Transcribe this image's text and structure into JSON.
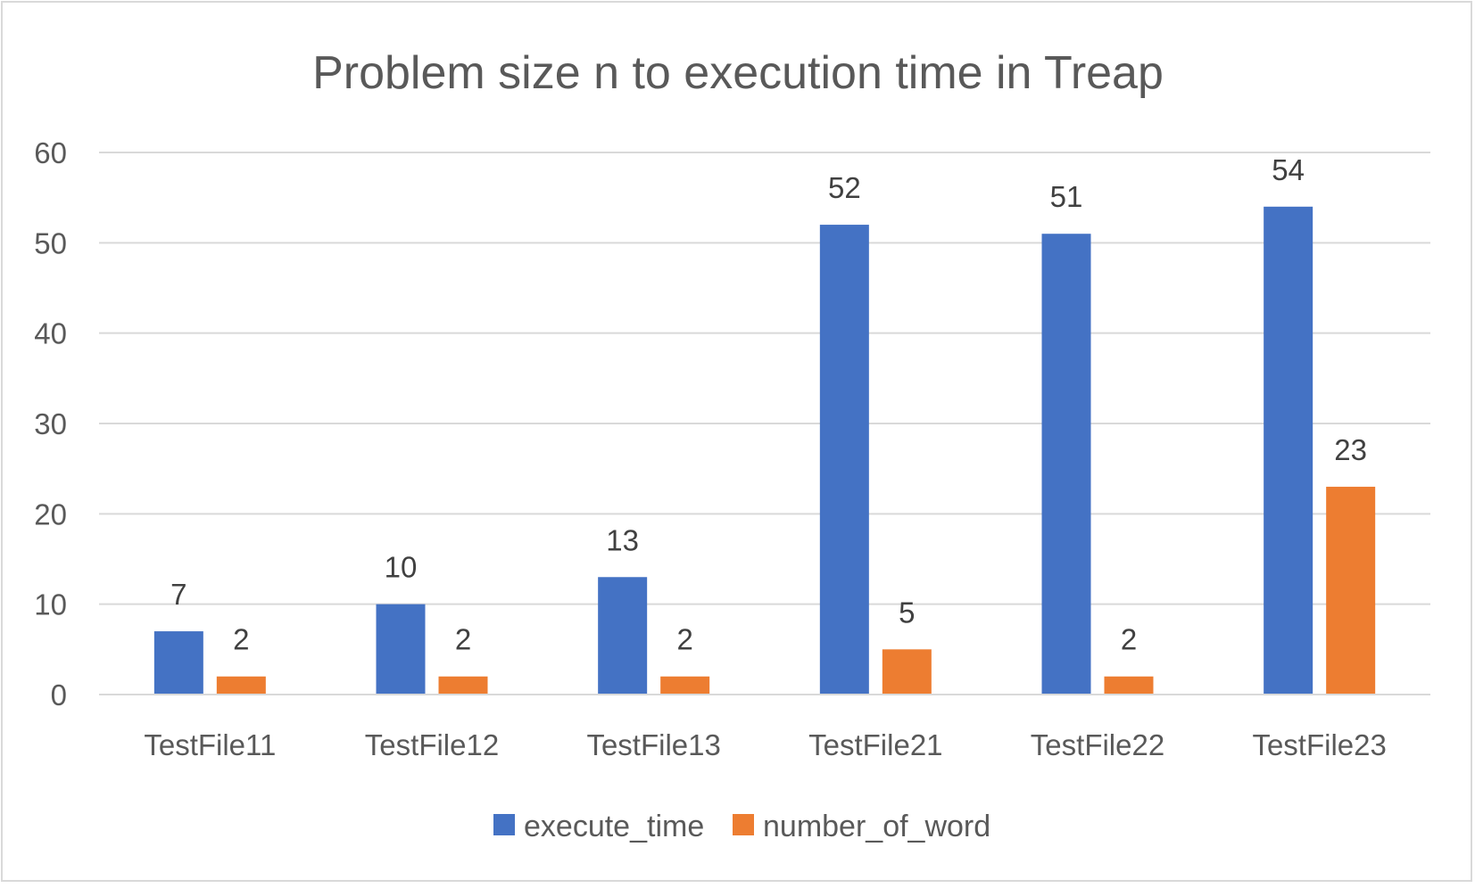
{
  "chart_data": {
    "type": "bar",
    "title": "Problem size n to execution time in Treap",
    "xlabel": "",
    "ylabel": "",
    "categories": [
      "TestFile11",
      "TestFile12",
      "TestFile13",
      "TestFile21",
      "TestFile22",
      "TestFile23"
    ],
    "series": [
      {
        "name": "execute_time",
        "values": [
          7,
          10,
          13,
          52,
          51,
          54
        ],
        "color": "#4472C4"
      },
      {
        "name": "number_of_word",
        "values": [
          2,
          2,
          2,
          5,
          2,
          23
        ],
        "color": "#ED7D31"
      }
    ],
    "ylim": [
      0,
      60
    ],
    "yticks": [
      0,
      10,
      20,
      30,
      40,
      50,
      60
    ],
    "grid": true,
    "legend_position": "bottom",
    "data_labels": true
  }
}
